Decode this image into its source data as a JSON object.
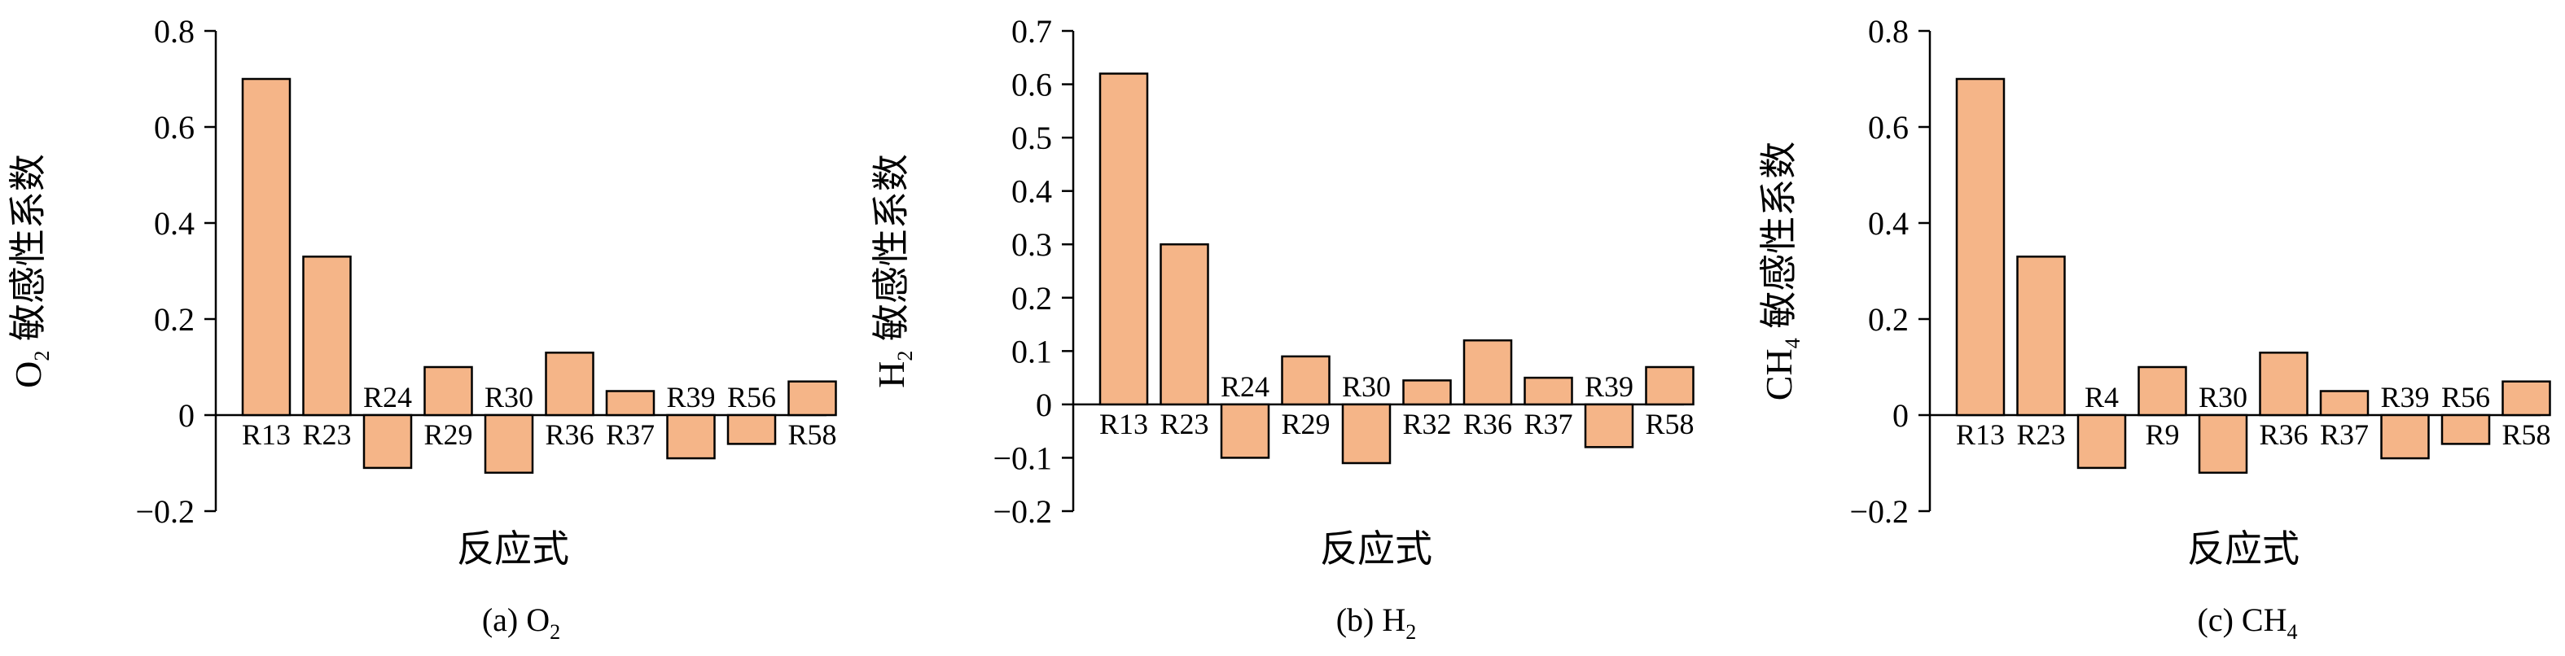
{
  "bar_color": "#F5B588",
  "bar_stroke": "#000000",
  "chart_data": [
    {
      "type": "bar",
      "caption": {
        "prefix": "(a) O",
        "sub": "2"
      },
      "ylabel": {
        "pre": "O",
        "sub": "2",
        "post": " 敏感性系数"
      },
      "xlabel": "反应式",
      "ylim": [
        -0.2,
        0.8
      ],
      "yticks": [
        -0.2,
        0,
        0.2,
        0.4,
        0.6,
        0.8
      ],
      "ytick_labels": [
        "−0.2",
        "0",
        "0.2",
        "0.4",
        "0.6",
        "0.8"
      ],
      "categories": [
        "R13",
        "R23",
        "R24",
        "R29",
        "R30",
        "R36",
        "R37",
        "R39",
        "R56",
        "R58"
      ],
      "values": [
        0.7,
        0.33,
        -0.11,
        0.1,
        -0.12,
        0.13,
        0.05,
        -0.09,
        -0.06,
        0.07
      ]
    },
    {
      "type": "bar",
      "caption": {
        "prefix": "(b) H",
        "sub": "2"
      },
      "ylabel": {
        "pre": "H",
        "sub": "2",
        "post": " 敏感性系数"
      },
      "xlabel": "反应式",
      "ylim": [
        -0.2,
        0.7
      ],
      "yticks": [
        -0.2,
        -0.1,
        0,
        0.1,
        0.2,
        0.3,
        0.4,
        0.5,
        0.6,
        0.7
      ],
      "ytick_labels": [
        "−0.2",
        "−0.1",
        "0",
        "0.1",
        "0.2",
        "0.3",
        "0.4",
        "0.5",
        "0.6",
        "0.7"
      ],
      "categories": [
        "R13",
        "R23",
        "R24",
        "R29",
        "R30",
        "R32",
        "R36",
        "R37",
        "R39",
        "R58"
      ],
      "values": [
        0.62,
        0.3,
        -0.1,
        0.09,
        -0.11,
        0.045,
        0.12,
        0.05,
        -0.08,
        0.07
      ]
    },
    {
      "type": "bar",
      "caption": {
        "prefix": "(c) CH",
        "sub": "4"
      },
      "ylabel": {
        "pre": "CH",
        "sub": "4",
        "post": " 敏感性系数"
      },
      "xlabel": "反应式",
      "ylim": [
        -0.2,
        0.8
      ],
      "yticks": [
        -0.2,
        0,
        0.2,
        0.4,
        0.6,
        0.8
      ],
      "ytick_labels": [
        "−0.2",
        "0",
        "0.2",
        "0.4",
        "0.6",
        "0.8"
      ],
      "categories": [
        "R13",
        "R23",
        "R4",
        "R9",
        "R30",
        "R36",
        "R37",
        "R39",
        "R56",
        "R58"
      ],
      "values": [
        0.7,
        0.33,
        -0.11,
        0.1,
        -0.12,
        0.13,
        0.05,
        -0.09,
        -0.06,
        0.07
      ]
    }
  ]
}
